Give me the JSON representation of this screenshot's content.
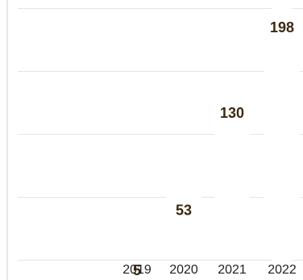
{
  "chart_data": {
    "type": "bar",
    "categories": [
      "2019",
      "2020",
      "2021",
      "2022"
    ],
    "values": [
      5,
      53,
      130,
      198
    ],
    "title": "",
    "xlabel": "",
    "ylabel": "",
    "ylim": [
      0,
      200
    ],
    "grid": true,
    "legend": "none",
    "colors": {
      "value_label": "#3b2a10",
      "tick_label": "#222222",
      "grid": "#e4e4e4",
      "bar": "#ffffff"
    }
  }
}
